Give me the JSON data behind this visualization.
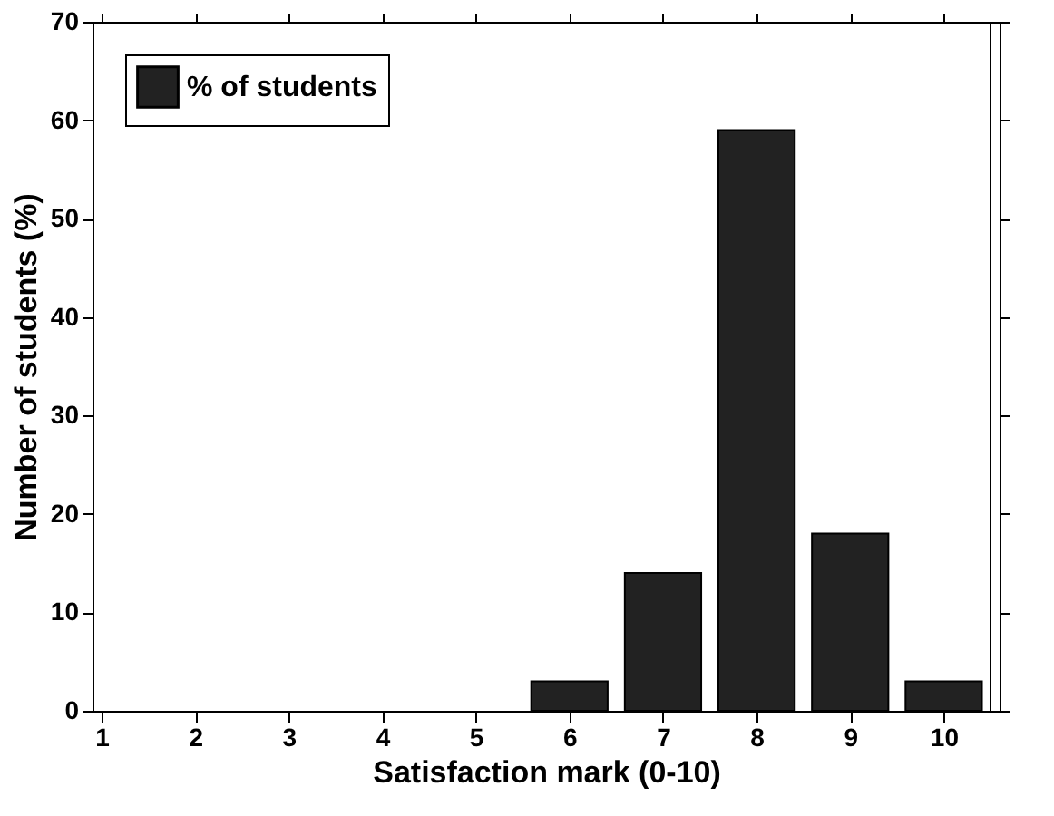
{
  "chart_data": {
    "type": "bar",
    "xlabel": "Satisfaction mark (0-10)",
    "ylabel": "Number of students (%)",
    "x": [
      6,
      7,
      8,
      9,
      10
    ],
    "series": [
      {
        "name": "% of students",
        "color": "#222222",
        "values": [
          3,
          14,
          59,
          18,
          3
        ]
      }
    ],
    "xlim": [
      1,
      10.5
    ],
    "xticks": [
      1,
      2,
      3,
      4,
      5,
      6,
      7,
      8,
      9,
      10
    ],
    "ylim": [
      0,
      70
    ],
    "yticks": [
      0,
      10,
      20,
      30,
      40,
      50,
      60,
      70
    ],
    "grid": false,
    "legend": "top left"
  }
}
